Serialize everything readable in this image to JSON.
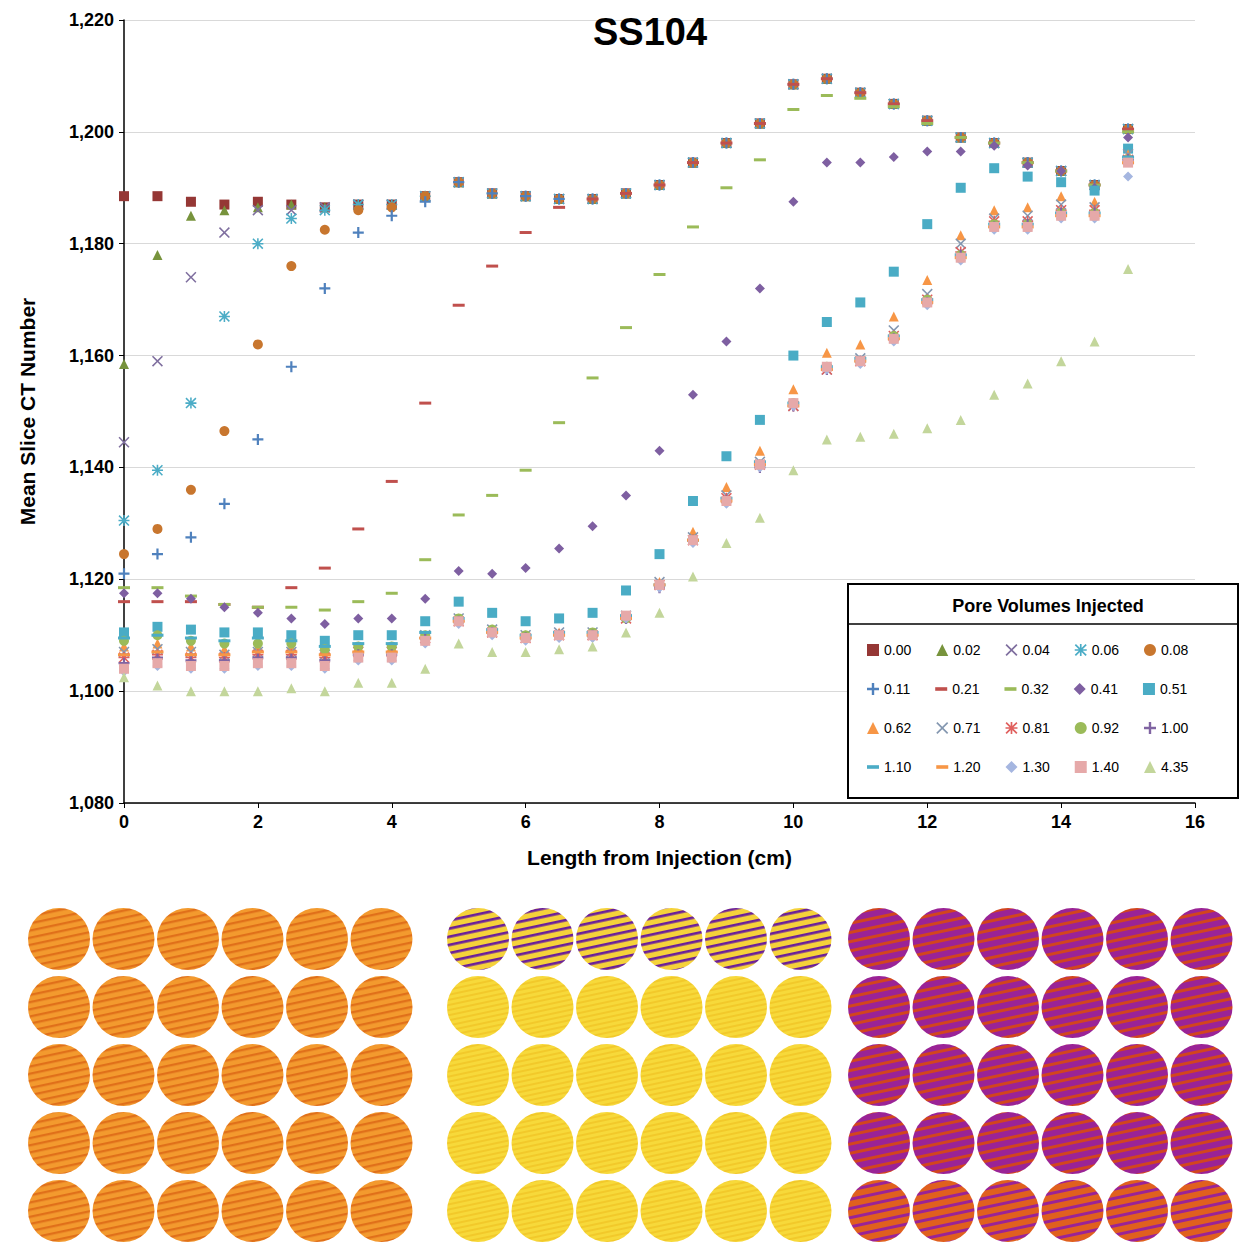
{
  "chart_data": {
    "type": "scatter",
    "title": "SS104",
    "x_label": "Length from Injection (cm)",
    "y_label": "Mean Slice CT Number",
    "legend_title": "Pore Volumes Injected",
    "legend": "lower right",
    "grid": true,
    "xlim": [
      0,
      16
    ],
    "xticks": [
      0,
      2,
      4,
      6,
      8,
      10,
      12,
      14,
      16
    ],
    "ylim": [
      1080,
      1220
    ],
    "yticks": [
      1080,
      1100,
      1120,
      1140,
      1160,
      1180,
      1200,
      1220
    ],
    "x": [
      0,
      0.5,
      1,
      1.5,
      2,
      2.5,
      3,
      3.5,
      4,
      4.5,
      5,
      5.5,
      6,
      6.5,
      7,
      7.5,
      8,
      8.5,
      9,
      9.5,
      10,
      10.5,
      11,
      11.5,
      12,
      12.5,
      13,
      13.5,
      14,
      14.5,
      15
    ],
    "series": [
      {
        "name": "0.00",
        "color": "#953735",
        "marker": "square",
        "values": [
          1188.5,
          1188.5,
          1187.5,
          1187,
          1187.5,
          1187,
          1186.5,
          1187,
          1187,
          1188.5,
          1191,
          1189,
          1188.5,
          1188,
          1188,
          1189,
          1190.5,
          1194.5,
          1198,
          1201.5,
          1208.5,
          1209.5,
          1207,
          1205,
          1202,
          1199,
          1198,
          1194.5,
          1193,
          1190.5,
          1200.5
        ]
      },
      {
        "name": "0.02",
        "color": "#77933C",
        "marker": "triangle",
        "values": [
          1158.5,
          1178,
          1185,
          1186,
          1186.5,
          1187,
          1186.5,
          1187,
          1187,
          1188.5,
          1191,
          1189,
          1188.5,
          1188,
          1188,
          1189,
          1190.5,
          1194.5,
          1198,
          1201.5,
          1208.5,
          1209.5,
          1207,
          1205,
          1202,
          1199,
          1198,
          1194.5,
          1193,
          1190.5,
          1200.5
        ]
      },
      {
        "name": "0.04",
        "color": "#7F6F9F",
        "marker": "x",
        "values": [
          1144.5,
          1159,
          1174,
          1182,
          1186,
          1186,
          1186.5,
          1187,
          1187,
          1188.5,
          1191,
          1189,
          1188.5,
          1188,
          1188,
          1189,
          1190.5,
          1194.5,
          1198,
          1201.5,
          1208.5,
          1209.5,
          1207,
          1205,
          1202,
          1199,
          1198,
          1194.5,
          1193,
          1190.5,
          1200.5
        ]
      },
      {
        "name": "0.06",
        "color": "#4BACC6",
        "marker": "star",
        "values": [
          1130.5,
          1139.5,
          1151.5,
          1167,
          1180,
          1184.5,
          1186,
          1187,
          1187,
          1188.5,
          1191,
          1189,
          1188.5,
          1188,
          1188,
          1189,
          1190.5,
          1194.5,
          1198,
          1201.5,
          1208.5,
          1209.5,
          1207,
          1205,
          1202,
          1199,
          1198,
          1194.5,
          1193,
          1190.5,
          1200.5
        ]
      },
      {
        "name": "0.08",
        "color": "#C8762E",
        "marker": "circle",
        "values": [
          1124.5,
          1129,
          1136,
          1146.5,
          1162,
          1176,
          1182.5,
          1186,
          1186.5,
          1188.5,
          1191,
          1189,
          1188.5,
          1188,
          1188,
          1189,
          1190.5,
          1194.5,
          1198,
          1201.5,
          1208.5,
          1209.5,
          1207,
          1205,
          1202,
          1199,
          1198,
          1194.5,
          1193,
          1190.5,
          1200.5
        ]
      },
      {
        "name": "0.11",
        "color": "#4F81BD",
        "marker": "plus",
        "values": [
          1121,
          1124.5,
          1127.5,
          1133.5,
          1145,
          1158,
          1172,
          1182,
          1185,
          1187.5,
          1191,
          1189,
          1188.5,
          1188,
          1188,
          1189,
          1190.5,
          1194.5,
          1198,
          1201.5,
          1208.5,
          1209.5,
          1207,
          1205,
          1202,
          1199,
          1198,
          1194.5,
          1193,
          1190.5,
          1200.5
        ]
      },
      {
        "name": "0.21",
        "color": "#C0504D",
        "marker": "dash",
        "values": [
          1116,
          1116,
          1116,
          1115.5,
          1115,
          1118.5,
          1122,
          1129,
          1137.5,
          1151.5,
          1169,
          1176,
          1182,
          1186.5,
          1188,
          1189,
          1190.5,
          1194.5,
          1198,
          1201.5,
          1208.5,
          1209.5,
          1207,
          1205,
          1202,
          1199,
          1198,
          1194.5,
          1193,
          1190.5,
          1200.5
        ]
      },
      {
        "name": "0.32",
        "color": "#9BBB59",
        "marker": "dash",
        "values": [
          1118.5,
          1118.5,
          1117,
          1115.5,
          1115,
          1115,
          1114.5,
          1116,
          1117.5,
          1123.5,
          1131.5,
          1135,
          1139.5,
          1148,
          1156,
          1165,
          1174.5,
          1183,
          1190,
          1195,
          1204,
          1206.5,
          1206,
          1204.5,
          1201.5,
          1199,
          1198,
          1194.5,
          1193,
          1190.5,
          1200
        ]
      },
      {
        "name": "0.41",
        "color": "#7E5FA1",
        "marker": "diamond",
        "values": [
          1117.5,
          1117.5,
          1116.5,
          1115,
          1114,
          1113,
          1112,
          1113,
          1113,
          1116.5,
          1121.5,
          1121,
          1122,
          1125.5,
          1129.5,
          1135,
          1143,
          1153,
          1162.5,
          1172,
          1187.5,
          1194.5,
          1194.5,
          1195.5,
          1196.5,
          1196.5,
          1197.5,
          1194,
          1193,
          1190,
          1199
        ]
      },
      {
        "name": "0.51",
        "color": "#4AACC5",
        "marker": "square",
        "values": [
          1110.5,
          1111.5,
          1111,
          1110.5,
          1110.5,
          1110,
          1109,
          1110,
          1110,
          1112.5,
          1116,
          1114,
          1112.5,
          1113,
          1114,
          1118,
          1124.5,
          1134,
          1142,
          1148.5,
          1160,
          1166,
          1169.5,
          1175,
          1183.5,
          1190,
          1193.5,
          1192,
          1191,
          1189.5,
          1197
        ]
      },
      {
        "name": "0.62",
        "color": "#F79646",
        "marker": "triangle",
        "values": [
          1108,
          1108.5,
          1108,
          1107.5,
          1108,
          1108,
          1107.5,
          1108,
          1108,
          1110,
          1113,
          1111,
          1110,
          1110.5,
          1110.5,
          1113.5,
          1119.5,
          1128.5,
          1136.5,
          1143,
          1154,
          1160.5,
          1162,
          1167,
          1173.5,
          1181.5,
          1186,
          1186.5,
          1188.5,
          1187.5,
          1196
        ]
      },
      {
        "name": "0.71",
        "color": "#8497B0",
        "marker": "x",
        "values": [
          1107,
          1107.5,
          1107,
          1106.5,
          1107,
          1107,
          1106.5,
          1107.5,
          1107.5,
          1110,
          1113,
          1111,
          1110,
          1110.5,
          1110.5,
          1113.5,
          1119.5,
          1127.5,
          1135,
          1141,
          1151,
          1157.5,
          1159.5,
          1164.5,
          1171,
          1180,
          1184.5,
          1185,
          1187,
          1186.5,
          1196
        ]
      },
      {
        "name": "0.81",
        "color": "#E0605E",
        "marker": "star",
        "values": [
          1106,
          1106.5,
          1106,
          1106,
          1106.5,
          1106.5,
          1106,
          1107,
          1107,
          1109.5,
          1112.5,
          1110.5,
          1109.5,
          1110,
          1110,
          1113,
          1119,
          1127,
          1134.5,
          1140.5,
          1151,
          1157.5,
          1159,
          1163.5,
          1170,
          1178.5,
          1184,
          1184,
          1186,
          1186,
          1195
        ]
      },
      {
        "name": "0.92",
        "color": "#9BBB59",
        "marker": "circle",
        "values": [
          1109,
          1110,
          1109,
          1108.5,
          1108.5,
          1108.5,
          1107.5,
          1108,
          1108,
          1110,
          1113,
          1111,
          1110,
          1110,
          1110.5,
          1113,
          1119,
          1127,
          1134,
          1140.5,
          1151.5,
          1158,
          1159,
          1163.5,
          1170,
          1178,
          1183.5,
          1183.5,
          1185.5,
          1185.5,
          1195
        ]
      },
      {
        "name": "1.00",
        "color": "#8064A2",
        "marker": "plus",
        "values": [
          1105,
          1106,
          1105.5,
          1105.5,
          1106,
          1106,
          1105.5,
          1106.5,
          1106.5,
          1109.5,
          1112.5,
          1110.5,
          1109.5,
          1110,
          1110,
          1113,
          1118.5,
          1127,
          1134,
          1140,
          1151,
          1157.5,
          1159,
          1163,
          1169.5,
          1178,
          1183,
          1183.5,
          1185.5,
          1185.5,
          1195
        ]
      },
      {
        "name": "1.10",
        "color": "#4BACC6",
        "marker": "dash",
        "values": [
          1109.5,
          1110,
          1109.5,
          1109,
          1109.5,
          1109,
          1108,
          1108.5,
          1108.5,
          1110.5,
          1113,
          1111,
          1110,
          1110.5,
          1110.5,
          1113.5,
          1119,
          1127,
          1134.5,
          1141,
          1151.5,
          1158,
          1159.5,
          1163.5,
          1170,
          1178,
          1183.5,
          1183.5,
          1185.5,
          1185.5,
          1195.5
        ]
      },
      {
        "name": "1.20",
        "color": "#F79646",
        "marker": "dash",
        "values": [
          1106.5,
          1107,
          1106.5,
          1106.5,
          1107,
          1107,
          1106.5,
          1107,
          1107,
          1109.5,
          1112.5,
          1110.5,
          1109.5,
          1110,
          1110,
          1113,
          1119,
          1127,
          1134,
          1140.5,
          1151,
          1157.5,
          1159,
          1163,
          1169.5,
          1177.5,
          1183,
          1183,
          1185,
          1185,
          1194.5
        ]
      },
      {
        "name": "1.30",
        "color": "#A5B6E0",
        "marker": "diamond",
        "values": [
          1103.5,
          1104.5,
          1104,
          1104,
          1104.5,
          1104.5,
          1104,
          1105.5,
          1105.5,
          1108.5,
          1112,
          1110,
          1109,
          1109.5,
          1109.5,
          1113,
          1118.5,
          1126.5,
          1133.5,
          1140,
          1151,
          1157.5,
          1158.5,
          1162.5,
          1169,
          1177,
          1182.5,
          1182.5,
          1184.5,
          1184.5,
          1192
        ]
      },
      {
        "name": "1.40",
        "color": "#E6A9A9",
        "marker": "square",
        "values": [
          1104,
          1105,
          1104.5,
          1104.5,
          1105,
          1105,
          1104.5,
          1106,
          1106,
          1109,
          1112.5,
          1110.5,
          1109.5,
          1110,
          1110,
          1113.5,
          1119,
          1127,
          1134,
          1140.5,
          1151.5,
          1158,
          1159,
          1163,
          1169.5,
          1177.5,
          1183,
          1183,
          1185,
          1185,
          1194.5
        ]
      },
      {
        "name": "4.35",
        "color": "#C3D69B",
        "marker": "triangle",
        "values": [
          1102.5,
          1101,
          1100,
          1100,
          1100,
          1100.5,
          1100,
          1101.5,
          1101.5,
          1104,
          1108.5,
          1107,
          1107,
          1107.5,
          1108,
          1110.5,
          1114,
          1120.5,
          1126.5,
          1131,
          1139.5,
          1145,
          1145.5,
          1146,
          1147,
          1148.5,
          1153,
          1155,
          1159,
          1162.5,
          1175.5
        ]
      }
    ]
  }
}
